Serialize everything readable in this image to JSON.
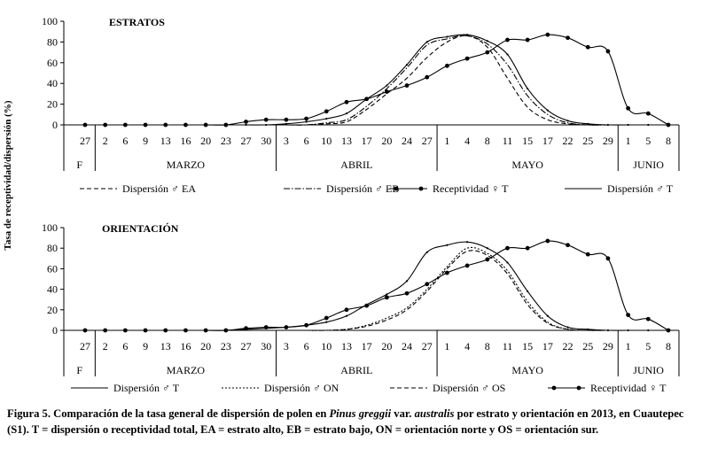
{
  "y_axis_title": "Tasa de receptividad/dispersión (%)",
  "caption": {
    "label": "Figura 5.",
    "text_before_species": " Comparación de la tasa general de dispersión de polen en ",
    "species": "Pinus greggii",
    "text_var": " var. ",
    "variety": "australis",
    "text_after": " por estrato y orientación en 2013, en Cuautepec (S1). T = dispersión o receptividad total, EA = estrato alto, EB = estrato bajo, ON = orientación norte y OS = orientación sur."
  },
  "colors": {
    "ink": "#000000",
    "background": "#ffffff"
  },
  "chart_data": [
    {
      "type": "line",
      "title": "ESTRATOS",
      "ylim": [
        0,
        100
      ],
      "y_ticks": [
        0,
        20,
        40,
        60,
        80,
        100
      ],
      "x_ticks": [
        "27",
        "2",
        "6",
        "9",
        "13",
        "16",
        "20",
        "23",
        "27",
        "30",
        "3",
        "6",
        "10",
        "13",
        "17",
        "20",
        "24",
        "27",
        "1",
        "4",
        "8",
        "11",
        "15",
        "17",
        "22",
        "25",
        "29",
        "1",
        "5",
        "8"
      ],
      "months": [
        "F",
        "MARZO",
        "ABRIL",
        "MAYO",
        "JUNIO"
      ],
      "month_spans": [
        [
          0,
          0
        ],
        [
          1,
          9
        ],
        [
          10,
          17
        ],
        [
          18,
          26
        ],
        [
          27,
          29
        ]
      ],
      "series": [
        {
          "name": "Dispersión ♂ EA",
          "style": "dashed",
          "values": [
            0,
            0,
            0,
            0,
            0,
            0,
            0,
            0,
            0,
            0,
            0,
            0,
            1,
            3,
            15,
            30,
            45,
            65,
            80,
            86,
            75,
            45,
            17,
            5,
            1,
            0,
            0,
            0,
            0,
            0
          ]
        },
        {
          "name": "Dispersión ♂ EB",
          "style": "dashdot",
          "values": [
            0,
            0,
            0,
            0,
            0,
            0,
            0,
            0,
            0,
            0,
            0,
            0,
            2,
            5,
            18,
            35,
            55,
            77,
            83,
            86,
            78,
            58,
            28,
            10,
            2,
            0,
            0,
            0,
            0,
            0
          ]
        },
        {
          "name": "Receptividad ♀ T",
          "style": "marker",
          "values": [
            0,
            0,
            0,
            0,
            0,
            0,
            0,
            0,
            3,
            5,
            5,
            6,
            13,
            22,
            25,
            32,
            38,
            46,
            57,
            64,
            70,
            82,
            82,
            87,
            84,
            75,
            71,
            16,
            11,
            0
          ]
        },
        {
          "name": "Dispersión ♂ T",
          "style": "solid",
          "values": [
            0,
            0,
            0,
            0,
            0,
            0,
            0,
            0,
            0,
            0,
            1,
            3,
            6,
            11,
            25,
            38,
            58,
            80,
            85,
            87,
            81,
            68,
            35,
            14,
            4,
            1,
            0,
            0,
            0,
            0
          ]
        }
      ]
    },
    {
      "type": "line",
      "title": "ORIENTACIÓN",
      "ylim": [
        0,
        100
      ],
      "y_ticks": [
        0,
        20,
        40,
        60,
        80,
        100
      ],
      "x_ticks": [
        "27",
        "2",
        "6",
        "9",
        "13",
        "16",
        "20",
        "23",
        "27",
        "30",
        "3",
        "6",
        "10",
        "13",
        "17",
        "20",
        "24",
        "27",
        "1",
        "4",
        "8",
        "11",
        "15",
        "17",
        "22",
        "25",
        "29",
        "1",
        "5",
        "8"
      ],
      "months": [
        "F",
        "MARZO",
        "ABRIL",
        "MAYO",
        "JUNIO"
      ],
      "month_spans": [
        [
          0,
          0
        ],
        [
          1,
          9
        ],
        [
          10,
          17
        ],
        [
          18,
          26
        ],
        [
          27,
          29
        ]
      ],
      "series": [
        {
          "name": "Dispersión ♂ T",
          "style": "solid",
          "values": [
            0,
            0,
            0,
            0,
            0,
            0,
            0,
            0,
            1,
            2,
            3,
            5,
            8,
            14,
            25,
            35,
            48,
            76,
            83,
            86,
            80,
            66,
            38,
            14,
            3,
            1,
            0,
            0,
            0,
            0
          ]
        },
        {
          "name": "Dispersión ♂ ON",
          "style": "dotted",
          "values": [
            0,
            0,
            0,
            0,
            0,
            0,
            0,
            0,
            0,
            0,
            0,
            0,
            0,
            1,
            5,
            12,
            22,
            40,
            62,
            80,
            75,
            58,
            28,
            8,
            1,
            0,
            0,
            0,
            0,
            0
          ]
        },
        {
          "name": "Dispersión ♂ OS",
          "style": "dashed",
          "values": [
            0,
            0,
            0,
            0,
            0,
            0,
            0,
            0,
            0,
            0,
            0,
            0,
            0,
            1,
            4,
            10,
            20,
            38,
            60,
            77,
            73,
            55,
            25,
            7,
            1,
            0,
            0,
            0,
            0,
            0
          ]
        },
        {
          "name": "Receptividad ♀ T",
          "style": "marker",
          "values": [
            0,
            0,
            0,
            0,
            0,
            0,
            0,
            0,
            2,
            3,
            3,
            5,
            12,
            20,
            24,
            32,
            36,
            45,
            56,
            63,
            69,
            80,
            80,
            87,
            83,
            74,
            70,
            15,
            11,
            0
          ]
        }
      ]
    }
  ]
}
